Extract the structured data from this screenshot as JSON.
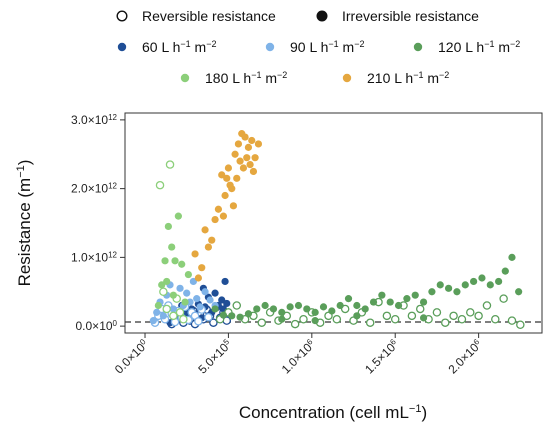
{
  "chart_data": {
    "type": "scatter",
    "title": "",
    "xlabel": "Concentration (cell mL",
    "xlabel_sup": "−1",
    "xlabel_tail": ")",
    "ylabel": "Resistance (m",
    "ylabel_sup": "−1",
    "ylabel_tail": ")",
    "xlim": [
      -120000,
      2380000
    ],
    "ylim": [
      -100000000000,
      3100000000000
    ],
    "x_ticks": [
      {
        "value": 0,
        "mant": "0.0×10",
        "exp": "0"
      },
      {
        "value": 500000,
        "mant": "5.0×10",
        "exp": "5"
      },
      {
        "value": 1000000,
        "mant": "1.0×10",
        "exp": "6"
      },
      {
        "value": 1500000,
        "mant": "1.5×10",
        "exp": "6"
      },
      {
        "value": 2000000,
        "mant": "2.0×10",
        "exp": "6"
      }
    ],
    "y_ticks": [
      {
        "value": 0,
        "mant": "0.0×10",
        "exp": "0"
      },
      {
        "value": 1000000000000,
        "mant": "1.0×10",
        "exp": "12"
      },
      {
        "value": 2000000000000,
        "mant": "2.0×10",
        "exp": "12"
      },
      {
        "value": 3000000000000,
        "mant": "3.0×10",
        "exp": "12"
      }
    ],
    "reference_line": {
      "y": 60000000000,
      "style": "dashed"
    },
    "grid": false,
    "legend_position": "top",
    "legend_markers": [
      {
        "name": "Reversible resistance",
        "marker": "open"
      },
      {
        "name": "Irreversible resistance",
        "marker": "filled"
      }
    ],
    "series": [
      {
        "name": "60 L h",
        "sup": "−1",
        "mid": " m",
        "sup2": "−2",
        "color": "#1f4e96",
        "irreversible": [
          [
            150000,
            50000000000
          ],
          [
            180000,
            180000000000
          ],
          [
            200000,
            120000000000
          ],
          [
            220000,
            300000000000
          ],
          [
            240000,
            220000000000
          ],
          [
            260000,
            150000000000
          ],
          [
            280000,
            250000000000
          ],
          [
            300000,
            180000000000
          ],
          [
            320000,
            320000000000
          ],
          [
            340000,
            120000000000
          ],
          [
            360000,
            280000000000
          ],
          [
            380000,
            420000000000
          ],
          [
            400000,
            200000000000
          ],
          [
            420000,
            480000000000
          ],
          [
            440000,
            300000000000
          ],
          [
            460000,
            380000000000
          ],
          [
            470000,
            250000000000
          ],
          [
            480000,
            650000000000
          ],
          [
            490000,
            330000000000
          ],
          [
            350000,
            550000000000
          ]
        ],
        "reversible": [
          [
            160000,
            30000000000
          ],
          [
            190000,
            100000000000
          ],
          [
            210000,
            150000000000
          ],
          [
            230000,
            50000000000
          ],
          [
            250000,
            200000000000
          ],
          [
            270000,
            80000000000
          ],
          [
            290000,
            220000000000
          ],
          [
            310000,
            60000000000
          ],
          [
            330000,
            180000000000
          ],
          [
            350000,
            100000000000
          ],
          [
            370000,
            240000000000
          ],
          [
            390000,
            150000000000
          ],
          [
            410000,
            50000000000
          ],
          [
            430000,
            280000000000
          ],
          [
            450000,
            120000000000
          ],
          [
            470000,
            200000000000
          ],
          [
            490000,
            80000000000
          ],
          [
            300000,
            30000000000
          ]
        ]
      },
      {
        "name": "90 L h",
        "sup": "−1",
        "mid": " m",
        "sup2": "−2",
        "color": "#7fb3e8",
        "irreversible": [
          [
            50000,
            80000000000
          ],
          [
            70000,
            200000000000
          ],
          [
            90000,
            350000000000
          ],
          [
            110000,
            150000000000
          ],
          [
            130000,
            450000000000
          ],
          [
            150000,
            600000000000
          ],
          [
            170000,
            250000000000
          ],
          [
            190000,
            400000000000
          ],
          [
            210000,
            550000000000
          ],
          [
            230000,
            300000000000
          ],
          [
            250000,
            480000000000
          ],
          [
            270000,
            350000000000
          ],
          [
            290000,
            650000000000
          ],
          [
            310000,
            400000000000
          ],
          [
            330000,
            280000000000
          ],
          [
            360000,
            500000000000
          ],
          [
            390000,
            380000000000
          ],
          [
            420000,
            300000000000
          ]
        ],
        "reversible": [
          [
            60000,
            50000000000
          ],
          [
            80000,
            150000000000
          ],
          [
            100000,
            250000000000
          ],
          [
            120000,
            100000000000
          ],
          [
            140000,
            300000000000
          ],
          [
            160000,
            180000000000
          ],
          [
            180000,
            60000000000
          ],
          [
            200000,
            220000000000
          ],
          [
            220000,
            120000000000
          ],
          [
            240000,
            280000000000
          ],
          [
            260000,
            90000000000
          ],
          [
            280000,
            200000000000
          ],
          [
            300000,
            150000000000
          ],
          [
            320000,
            70000000000
          ],
          [
            340000,
            240000000000
          ],
          [
            380000,
            130000000000
          ]
        ]
      },
      {
        "name": "120 L h",
        "sup": "−1",
        "mid": " m",
        "sup2": "−2",
        "color": "#5a9e5a",
        "irreversible": [
          [
            420000,
            250000000000
          ],
          [
            470000,
            160000000000
          ],
          [
            520000,
            150000000000
          ],
          [
            570000,
            130000000000
          ],
          [
            620000,
            180000000000
          ],
          [
            670000,
            250000000000
          ],
          [
            720000,
            300000000000
          ],
          [
            770000,
            250000000000
          ],
          [
            820000,
            200000000000
          ],
          [
            870000,
            280000000000
          ],
          [
            920000,
            300000000000
          ],
          [
            970000,
            250000000000
          ],
          [
            1020000,
            200000000000
          ],
          [
            1070000,
            280000000000
          ],
          [
            1120000,
            220000000000
          ],
          [
            1170000,
            300000000000
          ],
          [
            1220000,
            400000000000
          ],
          [
            1270000,
            300000000000
          ],
          [
            1320000,
            250000000000
          ],
          [
            1370000,
            350000000000
          ],
          [
            1420000,
            450000000000
          ],
          [
            1470000,
            350000000000
          ],
          [
            1520000,
            300000000000
          ],
          [
            1570000,
            400000000000
          ],
          [
            1620000,
            450000000000
          ],
          [
            1670000,
            350000000000
          ],
          [
            1720000,
            500000000000
          ],
          [
            1770000,
            600000000000
          ],
          [
            1820000,
            550000000000
          ],
          [
            1870000,
            500000000000
          ],
          [
            1920000,
            600000000000
          ],
          [
            1970000,
            650000000000
          ],
          [
            2020000,
            700000000000
          ],
          [
            2070000,
            600000000000
          ],
          [
            2120000,
            650000000000
          ],
          [
            2160000,
            800000000000
          ],
          [
            2200000,
            1000000000000
          ],
          [
            2240000,
            500000000000
          ],
          [
            1270000,
            150000000000
          ],
          [
            820000,
            100000000000
          ],
          [
            1670000,
            120000000000
          ],
          [
            1020000,
            80000000000
          ]
        ],
        "reversible": [
          [
            450000,
            100000000000
          ],
          [
            500000,
            200000000000
          ],
          [
            550000,
            300000000000
          ],
          [
            600000,
            100000000000
          ],
          [
            650000,
            150000000000
          ],
          [
            700000,
            50000000000
          ],
          [
            750000,
            200000000000
          ],
          [
            800000,
            80000000000
          ],
          [
            850000,
            150000000000
          ],
          [
            900000,
            30000000000
          ],
          [
            950000,
            100000000000
          ],
          [
            1000000,
            200000000000
          ],
          [
            1050000,
            50000000000
          ],
          [
            1100000,
            150000000000
          ],
          [
            1150000,
            100000000000
          ],
          [
            1200000,
            250000000000
          ],
          [
            1250000,
            80000000000
          ],
          [
            1300000,
            200000000000
          ],
          [
            1350000,
            50000000000
          ],
          [
            1400000,
            350000000000
          ],
          [
            1450000,
            150000000000
          ],
          [
            1500000,
            100000000000
          ],
          [
            1550000,
            300000000000
          ],
          [
            1600000,
            150000000000
          ],
          [
            1650000,
            250000000000
          ],
          [
            1700000,
            100000000000
          ],
          [
            1750000,
            200000000000
          ],
          [
            1800000,
            50000000000
          ],
          [
            1850000,
            150000000000
          ],
          [
            1900000,
            100000000000
          ],
          [
            1950000,
            200000000000
          ],
          [
            2000000,
            150000000000
          ],
          [
            2050000,
            300000000000
          ],
          [
            2100000,
            100000000000
          ],
          [
            2150000,
            400000000000
          ],
          [
            2200000,
            80000000000
          ],
          [
            2250000,
            20000000000
          ]
        ]
      },
      {
        "name": "180 L h",
        "sup": "−1",
        "mid": " m",
        "sup2": "−2",
        "color": "#8ccf7a",
        "irreversible": [
          [
            80000,
            300000000000
          ],
          [
            100000,
            600000000000
          ],
          [
            120000,
            950000000000
          ],
          [
            140000,
            1450000000000
          ],
          [
            160000,
            1150000000000
          ],
          [
            180000,
            950000000000
          ],
          [
            200000,
            1600000000000
          ],
          [
            220000,
            900000000000
          ],
          [
            240000,
            350000000000
          ],
          [
            260000,
            750000000000
          ],
          [
            130000,
            650000000000
          ],
          [
            170000,
            450000000000
          ]
        ],
        "reversible": [
          [
            90000,
            2050000000000
          ],
          [
            150000,
            2350000000000
          ],
          [
            110000,
            500000000000
          ],
          [
            130000,
            250000000000
          ],
          [
            170000,
            150000000000
          ],
          [
            190000,
            400000000000
          ],
          [
            210000,
            200000000000
          ],
          [
            230000,
            100000000000
          ]
        ]
      },
      {
        "name": "210 L h",
        "sup": "−1",
        "mid": " m",
        "sup2": "−2",
        "color": "#e5a73f",
        "irreversible": [
          [
            300000,
            1050000000000
          ],
          [
            320000,
            700000000000
          ],
          [
            340000,
            850000000000
          ],
          [
            360000,
            1400000000000
          ],
          [
            380000,
            1150000000000
          ],
          [
            400000,
            1250000000000
          ],
          [
            420000,
            1550000000000
          ],
          [
            440000,
            1700000000000
          ],
          [
            460000,
            2200000000000
          ],
          [
            480000,
            1900000000000
          ],
          [
            500000,
            2300000000000
          ],
          [
            520000,
            2000000000000
          ],
          [
            540000,
            2500000000000
          ],
          [
            560000,
            2650000000000
          ],
          [
            580000,
            2800000000000
          ],
          [
            600000,
            2750000000000
          ],
          [
            620000,
            2600000000000
          ],
          [
            640000,
            2700000000000
          ],
          [
            660000,
            2450000000000
          ],
          [
            680000,
            2650000000000
          ],
          [
            470000,
            1600000000000
          ],
          [
            510000,
            2050000000000
          ],
          [
            550000,
            2150000000000
          ],
          [
            590000,
            2300000000000
          ],
          [
            610000,
            2450000000000
          ],
          [
            630000,
            2350000000000
          ],
          [
            650000,
            2250000000000
          ],
          [
            490000,
            2150000000000
          ],
          [
            530000,
            1750000000000
          ],
          [
            570000,
            2400000000000
          ]
        ],
        "reversible": []
      }
    ]
  }
}
